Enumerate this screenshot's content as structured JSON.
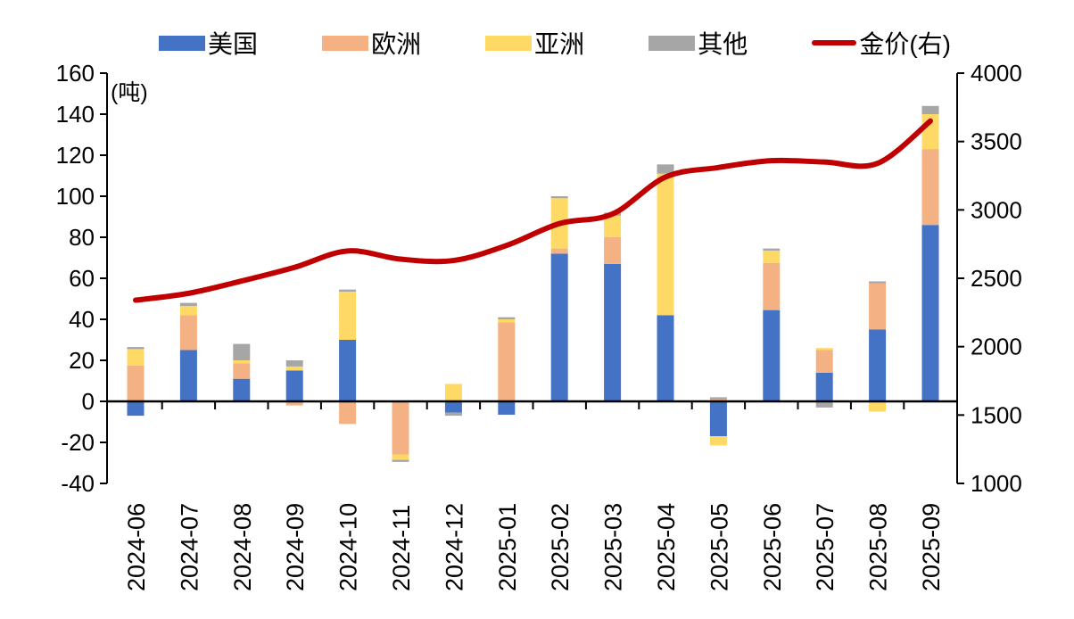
{
  "unit_label": "(吨)",
  "chart_data": {
    "type": "bar",
    "subtype": "stacked-bars-with-line",
    "categories": [
      "2024-06",
      "2024-07",
      "2024-08",
      "2024-09",
      "2024-10",
      "2024-11",
      "2024-12",
      "2025-01",
      "2025-02",
      "2025-03",
      "2025-04",
      "2025-05",
      "2025-06",
      "2025-07",
      "2025-08",
      "2025-09"
    ],
    "series": [
      {
        "name": "美国",
        "color": "#4472C4",
        "values": [
          -7,
          25,
          11,
          15,
          30,
          0,
          -5.5,
          -6.5,
          72,
          67,
          42,
          -17,
          44.5,
          14,
          35,
          86
        ]
      },
      {
        "name": "欧洲",
        "color": "#F4B183",
        "values": [
          17.5,
          17,
          7.5,
          -2,
          -11,
          -26,
          0,
          38.5,
          2.5,
          13,
          0,
          1,
          23,
          11,
          22.5,
          37
        ]
      },
      {
        "name": "亚洲",
        "color": "#FFD966",
        "values": [
          8,
          4.5,
          1.5,
          2,
          23.5,
          -2.5,
          8.5,
          1.5,
          24.5,
          10.5,
          69,
          -4.5,
          6,
          1,
          -5,
          17
        ]
      },
      {
        "name": "其他",
        "color": "#A6A6A6",
        "values": [
          1,
          1.5,
          8,
          3,
          1,
          -1,
          -1.5,
          1,
          1,
          1.5,
          4.5,
          1,
          1,
          -3,
          1,
          4
        ]
      }
    ],
    "line_series": {
      "name": "金价(右)",
      "color": "#C00000",
      "axis": "right",
      "values": [
        2340,
        2390,
        2480,
        2580,
        2700,
        2640,
        2630,
        2740,
        2900,
        2970,
        3240,
        3310,
        3360,
        3350,
        3340,
        3650
      ]
    },
    "left_axis": {
      "min": -40,
      "max": 160,
      "step": 20,
      "unit": "吨",
      "tick_labels": [
        "160",
        "140",
        "120",
        "100",
        "80",
        "60",
        "40",
        "20",
        "0",
        "-20",
        "-40"
      ]
    },
    "right_axis": {
      "min": 1000,
      "max": 4000,
      "step": 500,
      "tick_labels": [
        "4000",
        "3500",
        "3000",
        "2500",
        "2000",
        "1500",
        "1000"
      ]
    },
    "legend_position": "top",
    "grid": false
  }
}
